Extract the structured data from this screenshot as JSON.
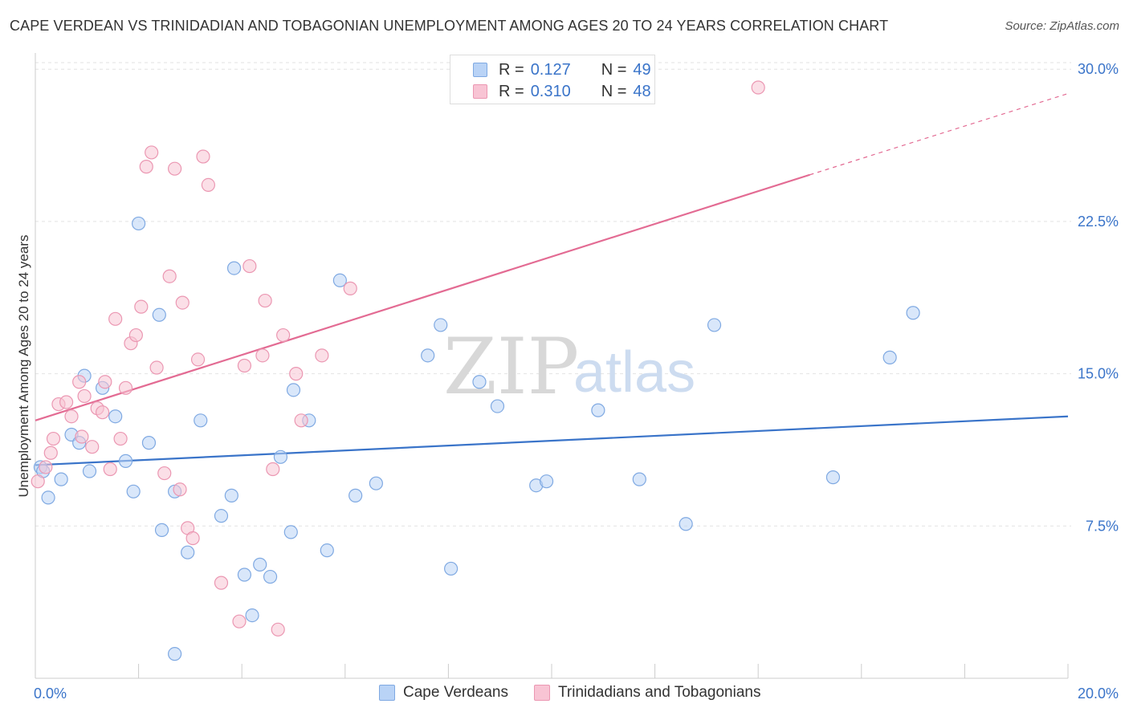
{
  "title": "CAPE VERDEAN VS TRINIDADIAN AND TOBAGONIAN UNEMPLOYMENT AMONG AGES 20 TO 24 YEARS CORRELATION CHART",
  "source": "Source: ZipAtlas.com",
  "watermark": {
    "zip": "ZIP",
    "atlas": "atlas"
  },
  "legend": {
    "r_label": "R =",
    "n_label": "N =",
    "blue": {
      "r": "0.127",
      "n": "49"
    },
    "pink": {
      "r": "0.310",
      "n": "48"
    }
  },
  "bottom_legend": {
    "blue_label": "Cape Verdeans",
    "pink_label": "Trinidadians and Tobagonians"
  },
  "colors": {
    "blue_fill": "#b9d3f6",
    "blue_stroke": "#7fa9e2",
    "blue_line": "#3a74c9",
    "pink_fill": "#f8c4d4",
    "pink_stroke": "#eb97b2",
    "pink_line": "#e36b93",
    "tick_label": "#3a74c9"
  },
  "chart_data": {
    "type": "scatter",
    "title": "CAPE VERDEAN VS TRINIDADIAN AND TOBAGONIAN UNEMPLOYMENT AMONG AGES 20 TO 24 YEARS CORRELATION CHART",
    "xlabel": "",
    "ylabel": "Unemployment Among Ages 20 to 24 years",
    "xlim": [
      0,
      20
    ],
    "ylim": [
      0,
      30.8
    ],
    "x_tick_labels": [
      {
        "value": 0,
        "label": "0.0%"
      },
      {
        "value": 20,
        "label": "20.0%"
      }
    ],
    "y_tick_labels": [
      {
        "value": 7.5,
        "label": "7.5%"
      },
      {
        "value": 15,
        "label": "15.0%"
      },
      {
        "value": 22.5,
        "label": "22.5%"
      },
      {
        "value": 30,
        "label": "30.0%"
      }
    ],
    "grid": true,
    "series": [
      {
        "name": "Cape Verdeans",
        "color": "blue",
        "points": [
          [
            0.1,
            10.4
          ],
          [
            0.15,
            10.2
          ],
          [
            0.25,
            8.9
          ],
          [
            0.5,
            9.8
          ],
          [
            0.7,
            12
          ],
          [
            0.85,
            11.6
          ],
          [
            0.95,
            14.9
          ],
          [
            1.05,
            10.2
          ],
          [
            1.3,
            14.3
          ],
          [
            1.55,
            12.9
          ],
          [
            1.75,
            10.7
          ],
          [
            1.9,
            9.2
          ],
          [
            2,
            22.4
          ],
          [
            2.2,
            11.6
          ],
          [
            2.4,
            17.9
          ],
          [
            2.45,
            7.3
          ],
          [
            2.7,
            9.2
          ],
          [
            2.95,
            6.2
          ],
          [
            3.2,
            12.7
          ],
          [
            3.6,
            8
          ],
          [
            3.8,
            9
          ],
          [
            3.85,
            20.2
          ],
          [
            4.05,
            5.1
          ],
          [
            4.2,
            3.1
          ],
          [
            4.35,
            5.6
          ],
          [
            4.55,
            5
          ],
          [
            4.75,
            10.9
          ],
          [
            4.95,
            7.2
          ],
          [
            5.0,
            14.2
          ],
          [
            5.3,
            12.7
          ],
          [
            5.65,
            6.3
          ],
          [
            5.9,
            19.6
          ],
          [
            6.2,
            9
          ],
          [
            6.6,
            9.6
          ],
          [
            7.6,
            15.9
          ],
          [
            7.85,
            17.4
          ],
          [
            8.05,
            5.4
          ],
          [
            8.6,
            14.6
          ],
          [
            8.95,
            13.4
          ],
          [
            9.7,
            9.5
          ],
          [
            9.9,
            9.7
          ],
          [
            10.9,
            13.2
          ],
          [
            11.7,
            9.8
          ],
          [
            12.6,
            7.6
          ],
          [
            13.15,
            17.4
          ],
          [
            15.45,
            9.9
          ],
          [
            16.55,
            15.8
          ],
          [
            17.0,
            18
          ],
          [
            2.7,
            1.2
          ]
        ],
        "trend": {
          "x": [
            0,
            20
          ],
          "y": [
            10.5,
            12.9
          ]
        }
      },
      {
        "name": "Trinidadians and Tobagonians",
        "color": "pink",
        "points": [
          [
            0.05,
            9.7
          ],
          [
            0.2,
            10.4
          ],
          [
            0.3,
            11.1
          ],
          [
            0.35,
            11.8
          ],
          [
            0.45,
            13.5
          ],
          [
            0.6,
            13.6
          ],
          [
            0.7,
            12.9
          ],
          [
            0.85,
            14.6
          ],
          [
            0.9,
            11.9
          ],
          [
            0.95,
            13.9
          ],
          [
            1.1,
            11.4
          ],
          [
            1.2,
            13.3
          ],
          [
            1.3,
            13.1
          ],
          [
            1.35,
            14.6
          ],
          [
            1.45,
            10.3
          ],
          [
            1.55,
            17.7
          ],
          [
            1.65,
            11.8
          ],
          [
            1.75,
            14.3
          ],
          [
            1.85,
            16.5
          ],
          [
            1.95,
            16.9
          ],
          [
            2.05,
            18.3
          ],
          [
            2.15,
            25.2
          ],
          [
            2.25,
            25.9
          ],
          [
            2.35,
            15.3
          ],
          [
            2.5,
            10.1
          ],
          [
            2.6,
            19.8
          ],
          [
            2.7,
            25.1
          ],
          [
            2.8,
            9.3
          ],
          [
            2.85,
            18.5
          ],
          [
            2.95,
            7.4
          ],
          [
            3.05,
            6.9
          ],
          [
            3.15,
            15.7
          ],
          [
            3.25,
            25.7
          ],
          [
            3.35,
            24.3
          ],
          [
            3.6,
            4.7
          ],
          [
            3.95,
            2.8
          ],
          [
            4.05,
            15.4
          ],
          [
            4.15,
            20.3
          ],
          [
            4.4,
            15.9
          ],
          [
            4.45,
            18.6
          ],
          [
            4.6,
            10.3
          ],
          [
            4.7,
            2.4
          ],
          [
            4.8,
            16.9
          ],
          [
            5.05,
            15
          ],
          [
            5.15,
            12.7
          ],
          [
            5.55,
            15.9
          ],
          [
            6.1,
            19.2
          ],
          [
            14.0,
            29.1
          ]
        ],
        "trend": {
          "x": [
            0,
            15
          ],
          "y": [
            12.7,
            24.8
          ],
          "dashed_extension": {
            "x": [
              15,
              20
            ],
            "y": [
              24.8,
              28.8
            ]
          }
        }
      }
    ]
  }
}
